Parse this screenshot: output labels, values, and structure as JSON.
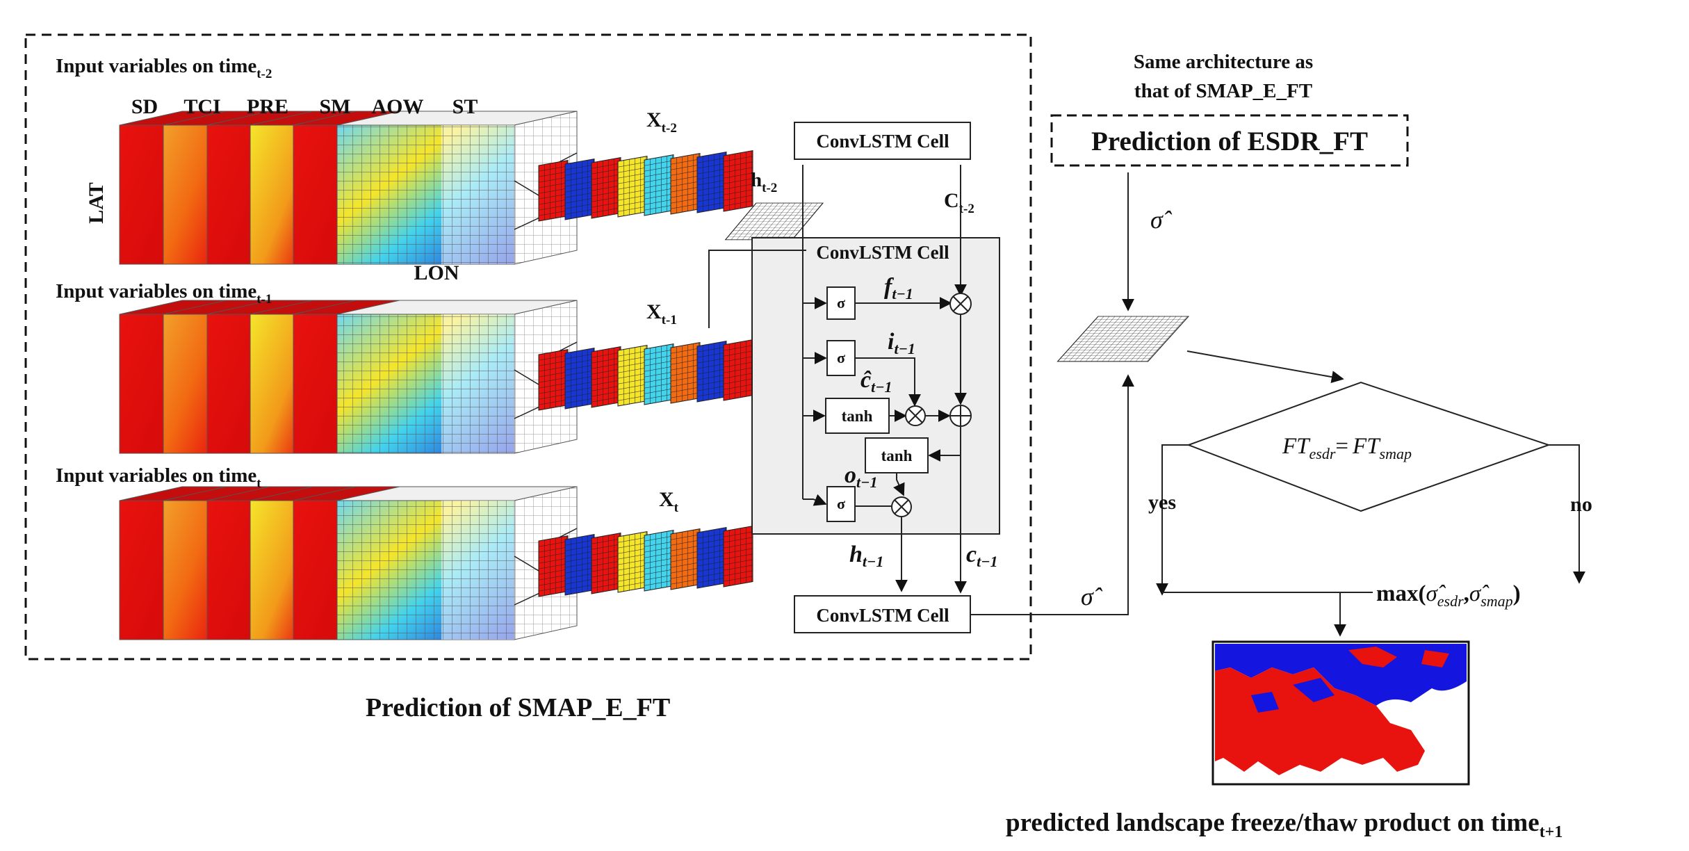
{
  "left_panel": {
    "rows": [
      {
        "title_prefix": "Input variables on time",
        "title_sub": "t-2",
        "x_label": "X",
        "x_sub": "t-2"
      },
      {
        "title_prefix": "Input variables on time",
        "title_sub": "t-1",
        "x_label": "X",
        "x_sub": "t-1"
      },
      {
        "title_prefix": "Input variables on time",
        "title_sub": "t",
        "x_label": "X",
        "x_sub": "t"
      }
    ],
    "variables": [
      "SD",
      "TCI",
      "PRE",
      "SM",
      "AOW",
      "ST"
    ],
    "axis_lat": "LAT",
    "axis_lon": "LON",
    "caption": "Prediction of SMAP_E_FT"
  },
  "lstm": {
    "top_cell": "ConvLSTM Cell",
    "middle_cell": "ConvLSTM Cell",
    "bottom_cell": "ConvLSTM Cell",
    "h_in": "h",
    "h_in_sub": "t-2",
    "c_in": "C",
    "c_in_sub": "t-2",
    "sigma": "σ",
    "tanh": "tanh",
    "times": "⊗",
    "plus": "⊕",
    "gate_f": "f",
    "gate_i": "i",
    "gate_c": "ĉ",
    "gate_o": "o",
    "gate_sub": "t−1",
    "h_out": "h",
    "c_out": "c",
    "out_sub": "t−1"
  },
  "right_panel": {
    "note_line1": "Same architecture as",
    "note_line2": "that of SMAP_E_FT",
    "esdr_box": "Prediction of ESDR_FT",
    "sigma_hat": "σ̂",
    "condition_left": "FT",
    "condition_left_sub": "esdr",
    "condition_eq": "=",
    "condition_right": "FT",
    "condition_right_sub": "smap",
    "yes": "yes",
    "no": "no",
    "max_prefix": "max(",
    "max_a": "σ̂",
    "max_a_sub": "esdr",
    "max_comma": ",",
    "max_b": "σ̂",
    "max_b_sub": "smap",
    "max_suffix": ")",
    "product_caption": "predicted landscape freeze/thaw product on time",
    "product_caption_sub": "t+1"
  },
  "colors": {
    "red": "#e8120e",
    "orange": "#f26a12",
    "yellow": "#f5e52a",
    "cyan": "#43d3ec",
    "blue": "#1736d4",
    "freeze_blue": "#1515e0",
    "gray_panel": "#eeeeee"
  }
}
